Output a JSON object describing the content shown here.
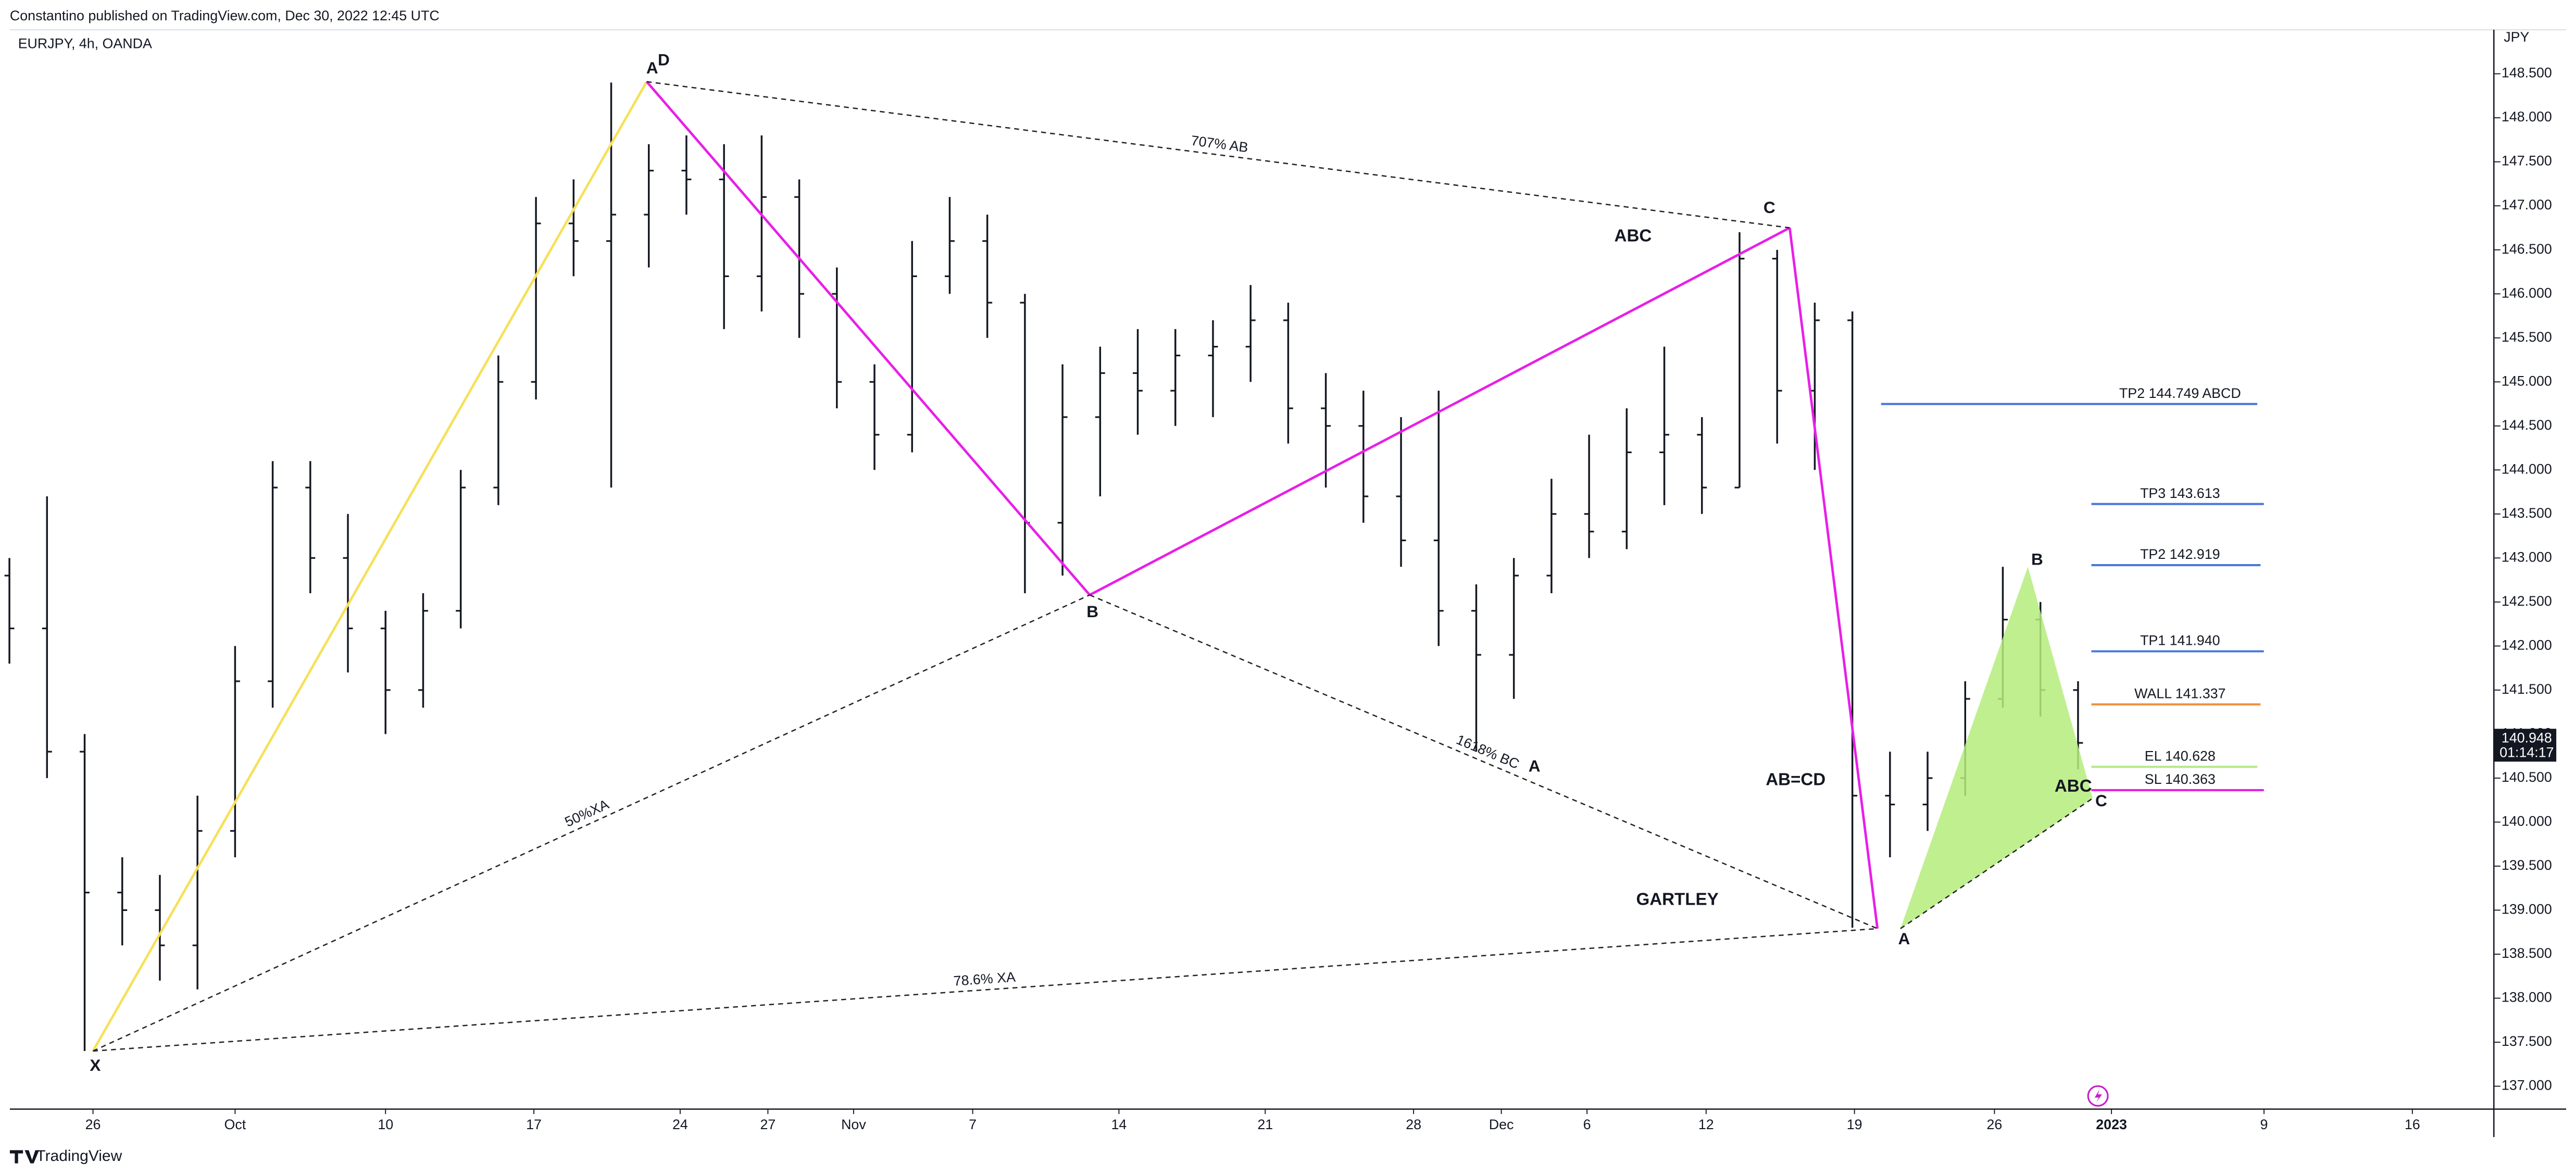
{
  "chart_data": {
    "type": "ohlc",
    "header": "Constantino published on TradingView.com, Dec 30, 2022 12:45 UTC",
    "symbol": "EURJPY, 4h, OANDA",
    "currency": "JPY",
    "brand": "TradingView",
    "x": [
      -4.0,
      -2.2,
      -0.4,
      1.4,
      3.2,
      5.0,
      6.8,
      8.6,
      10.4,
      12.2,
      14.0,
      15.8,
      17.6,
      19.4,
      21.2,
      23.0,
      24.8,
      26.6,
      28.4,
      30.2,
      32.0,
      33.8,
      35.6,
      37.4,
      39.2,
      41.0,
      42.8,
      44.6,
      46.4,
      48.2,
      50.0,
      51.8,
      53.6,
      55.4,
      57.2,
      59.0,
      60.8,
      62.6,
      64.4,
      66.2,
      68.0,
      69.8,
      71.6,
      73.4,
      75.2,
      77.0,
      78.8,
      80.6,
      82.4,
      84.2,
      86.0,
      87.8,
      89.6,
      91.4,
      93.2,
      95.0
    ],
    "open": [
      142.8,
      142.2,
      140.8,
      139.2,
      139.0,
      138.6,
      139.9,
      141.6,
      143.8,
      143.0,
      142.2,
      141.5,
      142.4,
      143.8,
      145.0,
      146.8,
      146.6,
      146.9,
      147.4,
      147.3,
      146.2,
      147.1,
      146.0,
      145.0,
      144.4,
      146.2,
      146.6,
      145.9,
      143.4,
      144.6,
      145.1,
      144.9,
      145.3,
      145.4,
      145.7,
      144.7,
      144.5,
      143.7,
      143.2,
      142.4,
      141.9,
      142.8,
      143.5,
      143.3,
      144.2,
      144.4,
      143.8,
      146.4,
      144.9,
      145.7,
      140.3,
      140.2,
      140.5,
      141.4,
      142.3,
      141.5
    ],
    "high": [
      143.0,
      143.7,
      141.0,
      139.6,
      139.4,
      140.3,
      142.0,
      144.1,
      144.1,
      143.5,
      142.4,
      142.6,
      144.0,
      145.3,
      147.1,
      147.3,
      148.4,
      147.7,
      147.8,
      147.7,
      147.8,
      147.3,
      146.3,
      145.2,
      146.6,
      147.1,
      146.9,
      146.0,
      145.2,
      145.4,
      145.6,
      145.6,
      145.7,
      146.1,
      145.9,
      145.1,
      144.9,
      144.6,
      144.9,
      142.7,
      143.0,
      143.9,
      144.4,
      144.7,
      145.4,
      144.6,
      146.7,
      146.5,
      145.9,
      145.8,
      140.8,
      140.8,
      141.6,
      142.9,
      142.5,
      141.6
    ],
    "low": [
      141.8,
      140.5,
      137.4,
      138.6,
      138.2,
      138.1,
      139.6,
      141.3,
      142.6,
      141.7,
      141.0,
      141.3,
      142.2,
      143.6,
      144.8,
      146.2,
      143.8,
      146.3,
      146.9,
      145.6,
      145.8,
      145.5,
      144.7,
      144.0,
      144.2,
      146.0,
      145.5,
      142.6,
      142.8,
      143.7,
      144.4,
      144.5,
      144.6,
      145.0,
      144.3,
      143.8,
      143.4,
      142.9,
      142.0,
      140.8,
      141.4,
      142.6,
      143.0,
      143.1,
      143.6,
      143.5,
      143.8,
      144.3,
      144.0,
      138.8,
      139.6,
      139.9,
      140.3,
      141.3,
      141.2,
      140.6
    ],
    "close": [
      142.2,
      140.8,
      139.2,
      139.0,
      138.6,
      139.9,
      141.6,
      143.8,
      143.0,
      142.2,
      141.5,
      142.4,
      143.8,
      145.0,
      146.8,
      146.6,
      146.9,
      147.4,
      147.3,
      146.2,
      147.1,
      146.0,
      145.0,
      144.4,
      146.2,
      146.6,
      145.9,
      143.4,
      144.6,
      145.1,
      144.9,
      145.3,
      145.4,
      145.7,
      144.7,
      144.5,
      143.7,
      143.2,
      142.4,
      141.9,
      142.8,
      143.5,
      143.3,
      144.2,
      144.4,
      143.8,
      146.4,
      144.9,
      145.7,
      140.3,
      140.2,
      140.5,
      141.4,
      142.3,
      141.5,
      140.9
    ],
    "xlim": [
      -3.9,
      114.9
    ],
    "xticks": [
      {
        "value": 0,
        "label": "26"
      },
      {
        "value": 6.8,
        "label": "Oct"
      },
      {
        "value": 14.0,
        "label": "10"
      },
      {
        "value": 21.1,
        "label": "17"
      },
      {
        "value": 28.1,
        "label": "24"
      },
      {
        "value": 32.3,
        "label": "27"
      },
      {
        "value": 36.4,
        "label": "Nov"
      },
      {
        "value": 42.1,
        "label": "7"
      },
      {
        "value": 49.1,
        "label": "14"
      },
      {
        "value": 56.1,
        "label": "21"
      },
      {
        "value": 63.2,
        "label": "28"
      },
      {
        "value": 67.4,
        "label": "Dec"
      },
      {
        "value": 71.5,
        "label": "6"
      },
      {
        "value": 77.2,
        "label": "12"
      },
      {
        "value": 84.3,
        "label": "19"
      },
      {
        "value": 91.0,
        "label": "26"
      },
      {
        "value": 96.6,
        "label": "2023"
      },
      {
        "value": 103.9,
        "label": "9"
      },
      {
        "value": 111.0,
        "label": "16"
      }
    ],
    "ylim": [
      136.74,
      149.0
    ],
    "yticks": [
      {
        "value": 137.0,
        "label": "137.000"
      },
      {
        "value": 137.5,
        "label": "137.500"
      },
      {
        "value": 138.0,
        "label": "138.000"
      },
      {
        "value": 138.5,
        "label": "138.500"
      },
      {
        "value": 139.0,
        "label": "139.000"
      },
      {
        "value": 139.5,
        "label": "139.500"
      },
      {
        "value": 140.0,
        "label": "140.000"
      },
      {
        "value": 140.5,
        "label": "140.500"
      },
      {
        "value": 141.0,
        "label": "141.000"
      },
      {
        "value": 141.5,
        "label": "141.500"
      },
      {
        "value": 142.0,
        "label": "142.000"
      },
      {
        "value": 142.5,
        "label": "142.500"
      },
      {
        "value": 143.0,
        "label": "143.000"
      },
      {
        "value": 143.5,
        "label": "143.500"
      },
      {
        "value": 144.0,
        "label": "144.000"
      },
      {
        "value": 144.5,
        "label": "144.500"
      },
      {
        "value": 145.0,
        "label": "145.000"
      },
      {
        "value": 145.5,
        "label": "145.500"
      },
      {
        "value": 146.0,
        "label": "146.000"
      },
      {
        "value": 146.5,
        "label": "146.500"
      },
      {
        "value": 147.0,
        "label": "147.000"
      },
      {
        "value": 147.5,
        "label": "147.500"
      },
      {
        "value": 148.0,
        "label": "148.000"
      },
      {
        "value": 148.5,
        "label": "148.500"
      }
    ],
    "last_price": {
      "value": 140.948,
      "label": "140.948"
    },
    "countdown": "01:14:17",
    "levels": [
      {
        "label": "TP2 144.749 ABCD",
        "value": 144.749,
        "color": "#4a78d8"
      },
      {
        "label": "TP3 143.613",
        "value": 143.613,
        "color": "#4a78d8"
      },
      {
        "label": "TP2 142.919",
        "value": 142.919,
        "color": "#4a78d8"
      },
      {
        "label": "TP1 141.940",
        "value": 141.94,
        "color": "#4a78d8"
      },
      {
        "label": "WALL 141.337",
        "value": 141.337,
        "color": "#f0903a"
      },
      {
        "label": "EL 140.628",
        "value": 140.628,
        "color": "#b5e88a"
      },
      {
        "label": "SL 140.363",
        "value": 140.363,
        "color": "#e81ee8"
      }
    ],
    "lines": [
      {
        "x": [
          0,
          26.5
        ],
        "y": [
          137.4,
          148.41
        ],
        "color": "#f5e15a",
        "dashed": false
      },
      {
        "x": [
          26.5,
          47.7
        ],
        "y": [
          148.41,
          142.58
        ],
        "color": "#e81ee8",
        "dashed": false
      },
      {
        "x": [
          47.7,
          81.2
        ],
        "y": [
          142.58,
          146.75
        ],
        "color": "#e81ee8",
        "dashed": false
      },
      {
        "x": [
          81.2,
          85.4
        ],
        "y": [
          146.75,
          138.79
        ],
        "color": "#e81ee8",
        "dashed": false
      },
      {
        "x": [
          0,
          47.7
        ],
        "y": [
          137.4,
          142.58
        ],
        "color": "#222222",
        "dashed": true,
        "label": "50%XA"
      },
      {
        "x": [
          47.7,
          85.4
        ],
        "y": [
          142.58,
          138.79
        ],
        "color": "#222222",
        "dashed": true,
        "label": "1618% BC"
      },
      {
        "x": [
          0,
          85.4
        ],
        "y": [
          137.4,
          138.79
        ],
        "color": "#222222",
        "dashed": true,
        "label": "78.6% XA"
      },
      {
        "x": [
          26.5,
          81.2
        ],
        "y": [
          148.41,
          146.75
        ],
        "color": "#222222",
        "dashed": true,
        "label": "707% AB"
      },
      {
        "x": [
          86.5,
          95.7
        ],
        "y": [
          138.79,
          140.27
        ],
        "color": "#222222",
        "dashed": true
      }
    ],
    "triangle": {
      "x": [
        86.5,
        92.6,
        95.7
      ],
      "y": [
        138.79,
        142.9,
        140.27
      ],
      "color": "#b5ec7d"
    },
    "point_labels": [
      "X",
      "A",
      "D",
      "B",
      "C",
      "A",
      "A",
      "B",
      "C"
    ],
    "pattern_labels": [
      "ABC",
      "AB=CD",
      "GARTLEY",
      "ABC"
    ]
  }
}
